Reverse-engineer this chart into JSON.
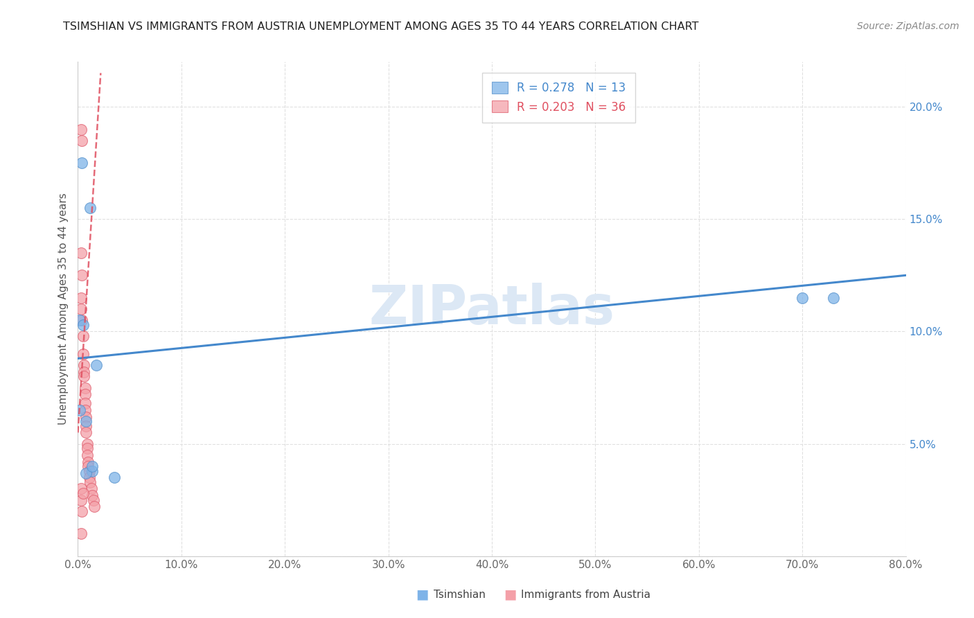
{
  "title": "TSIMSHIAN VS IMMIGRANTS FROM AUSTRIA UNEMPLOYMENT AMONG AGES 35 TO 44 YEARS CORRELATION CHART",
  "source": "Source: ZipAtlas.com",
  "ylabel": "Unemployment Among Ages 35 to 44 years",
  "xlabel_blue": "Tsimshian",
  "xlabel_pink": "Immigrants from Austria",
  "r_blue": 0.278,
  "n_blue": 13,
  "r_pink": 0.203,
  "n_pink": 36,
  "xlim": [
    0,
    0.8
  ],
  "ylim": [
    0,
    0.22
  ],
  "xticks": [
    0.0,
    0.1,
    0.2,
    0.3,
    0.4,
    0.5,
    0.6,
    0.7,
    0.8
  ],
  "yticks": [
    0.0,
    0.05,
    0.1,
    0.15,
    0.2
  ],
  "blue_scatter_x": [
    0.004,
    0.012,
    0.002,
    0.005,
    0.018,
    0.002,
    0.008,
    0.014,
    0.035,
    0.008,
    0.014,
    0.7,
    0.73
  ],
  "blue_scatter_y": [
    0.175,
    0.155,
    0.105,
    0.103,
    0.085,
    0.065,
    0.06,
    0.038,
    0.035,
    0.037,
    0.04,
    0.115,
    0.115
  ],
  "pink_scatter_x": [
    0.003,
    0.004,
    0.003,
    0.004,
    0.003,
    0.003,
    0.004,
    0.005,
    0.005,
    0.006,
    0.006,
    0.006,
    0.007,
    0.007,
    0.007,
    0.007,
    0.008,
    0.008,
    0.008,
    0.009,
    0.009,
    0.009,
    0.01,
    0.01,
    0.011,
    0.011,
    0.012,
    0.013,
    0.014,
    0.015,
    0.016,
    0.003,
    0.003,
    0.005,
    0.004,
    0.003
  ],
  "pink_scatter_y": [
    0.19,
    0.185,
    0.135,
    0.125,
    0.115,
    0.11,
    0.105,
    0.098,
    0.09,
    0.085,
    0.082,
    0.08,
    0.075,
    0.072,
    0.068,
    0.065,
    0.062,
    0.058,
    0.055,
    0.05,
    0.048,
    0.045,
    0.042,
    0.04,
    0.038,
    0.035,
    0.033,
    0.03,
    0.027,
    0.025,
    0.022,
    0.03,
    0.025,
    0.028,
    0.02,
    0.01
  ],
  "blue_line_x": [
    0.0,
    0.8
  ],
  "blue_line_y": [
    0.088,
    0.125
  ],
  "pink_line_x": [
    0.0,
    0.022
  ],
  "pink_line_y": [
    0.055,
    0.215
  ],
  "color_blue": "#7EB3E8",
  "color_pink": "#F4A0A8",
  "color_blue_dark": "#5591CC",
  "color_pink_dark": "#E06070",
  "color_blue_text": "#4488CC",
  "color_pink_text": "#E05060",
  "watermark_color": "#dce8f5",
  "background_color": "#ffffff",
  "grid_color": "#e0e0e0",
  "title_fontsize": 11.5,
  "axis_label_fontsize": 11,
  "tick_fontsize": 11,
  "legend_fontsize": 12,
  "source_fontsize": 10
}
